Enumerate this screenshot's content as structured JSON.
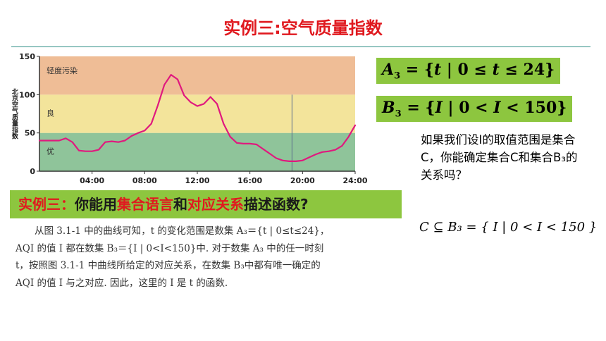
{
  "title": "实例三:空气质量指数",
  "banner": {
    "part1": "实例三：",
    "part2": "你能用",
    "part3": "集合语言",
    "part4": "和",
    "part5": "对应关系",
    "part6": "描述函数?"
  },
  "formula_a3": {
    "lhs": "A",
    "sub": "3",
    "eq": " = {",
    "var": "t",
    "bar": " | ",
    "zero": "0",
    "le1": " ≤ ",
    "var2": "t",
    "le2": " ≤ ",
    "max": "24",
    "close": "}"
  },
  "formula_b3": {
    "lhs": "B",
    "sub": "3",
    "eq": " = {",
    "var": "I",
    "bar": " | ",
    "zero": "0",
    "lt1": " < ",
    "var2": "I",
    "lt2": " < ",
    "max": "150",
    "close": "}"
  },
  "question": "如果我们设I的取值范围是集合C，你能确定集合C和集合B₃的关系吗？",
  "conclusion": "C ⊆ B₃ = { I | 0 < I < 150 }",
  "textbook": "从图 3.1-1 中的曲线可知，t 的变化范围是数集 A₃＝{t | 0≤t≤24}，AQI 的值 I 都在数集 B₃＝{I | 0<I<150}中. 对于数集 A₃ 中的任一时刻 t，按照图 3.1-1 中曲线所给定的对应关系，在数集 B₃中都有唯一确定的 AQI 的值 I 与之对应. 因此，这里的 I 是 t 的函数.",
  "chart_data": {
    "type": "line",
    "ylabel": "北京空气质量指数",
    "xlabel": "",
    "xlim": [
      0,
      24
    ],
    "ylim": [
      0,
      150
    ],
    "x_ticks": [
      "04:00",
      "08:00",
      "12:00",
      "16:00",
      "20:00",
      "24:00"
    ],
    "x_tick_values": [
      4,
      8,
      12,
      16,
      20,
      24
    ],
    "y_ticks": [
      "0",
      "50",
      "100",
      "150"
    ],
    "y_tick_values": [
      0,
      50,
      100,
      150
    ],
    "bands": [
      {
        "label": "优",
        "from": 0,
        "to": 50,
        "color": "#8fc49a"
      },
      {
        "label": "良",
        "from": 50,
        "to": 100,
        "color": "#f3e49b"
      },
      {
        "label": "轻度污染",
        "from": 100,
        "to": 150,
        "color": "#efbd96"
      }
    ],
    "marker_x": 19.2,
    "line_color": "#e0197e",
    "series": [
      {
        "x": [
          0,
          1,
          1.5,
          2,
          2.5,
          3,
          3.5,
          4,
          4.5,
          5,
          5.5,
          6,
          6.5,
          7,
          7.5,
          8,
          8.5,
          9,
          9.5,
          10,
          10.5,
          11,
          11.5,
          12,
          12.5,
          13,
          13.5,
          14,
          14.5,
          15,
          15.5,
          16,
          16.5,
          17,
          17.5,
          18,
          18.5,
          19,
          19.5,
          20,
          20.5,
          21,
          21.5,
          22,
          22.5,
          23,
          23.5,
          24
        ],
        "y": [
          40,
          40,
          40,
          43,
          38,
          27,
          26,
          26,
          28,
          38,
          39,
          38,
          40,
          46,
          50,
          53,
          62,
          86,
          113,
          126,
          120,
          99,
          90,
          85,
          88,
          97,
          88,
          62,
          45,
          37,
          36,
          36,
          35,
          29,
          23,
          17,
          14,
          13,
          13,
          14,
          18,
          22,
          25,
          26,
          28,
          33,
          45,
          60
        ]
      }
    ]
  }
}
